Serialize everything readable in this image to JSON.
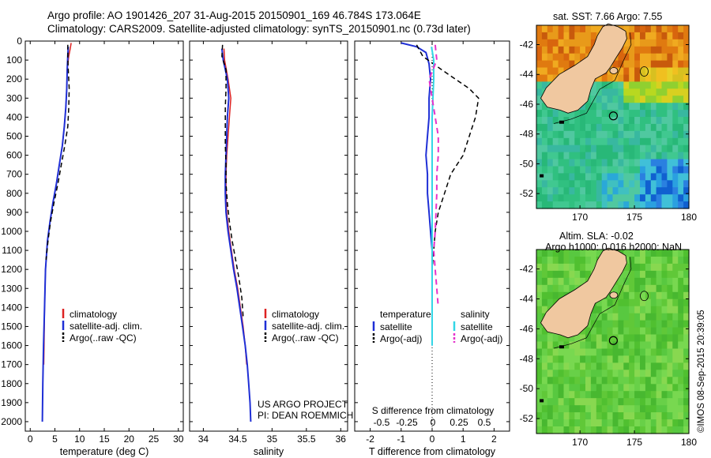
{
  "header": {
    "line1": "Argo profile: AO 1901426_207 31-Aug-2015 20150901_169 46.784S 173.064E",
    "line2": "Climatology: CARS2009. Satellite-adjusted climatology: synTS_20150901.nc (0.73d later)"
  },
  "colors": {
    "climatology": "#dd2222",
    "satellite": "#1f2fd6",
    "argo": "#000000",
    "sat_salinity": "#33d6e6",
    "argo_salinity": "#e633cc"
  },
  "chart_data": [
    {
      "type": "line",
      "panel": "temperature",
      "xlabel": "temperature (deg C)",
      "xlim": [
        -1,
        31
      ],
      "xticks": [
        0,
        5,
        10,
        15,
        20,
        25,
        30
      ],
      "ylim": [
        0,
        2050
      ],
      "yticks": [
        0,
        100,
        200,
        300,
        400,
        500,
        600,
        700,
        800,
        900,
        1000,
        1100,
        1200,
        1300,
        1400,
        1500,
        1600,
        1700,
        1800,
        1900,
        2000
      ],
      "legend": [
        "climatology",
        "satellite-adj. clim.",
        "Argo(..raw -QC)"
      ],
      "series": [
        {
          "name": "climatology",
          "color": "#dd2222",
          "dash": "",
          "width": 1.5,
          "points": [
            [
              8.3,
              10
            ],
            [
              8.1,
              40
            ],
            [
              7.8,
              80
            ],
            [
              7.5,
              150
            ],
            [
              7.4,
              250
            ],
            [
              7.2,
              350
            ],
            [
              6.9,
              450
            ],
            [
              6.5,
              550
            ],
            [
              5.9,
              650
            ],
            [
              5.3,
              750
            ],
            [
              4.6,
              850
            ],
            [
              4.0,
              950
            ],
            [
              3.5,
              1050
            ],
            [
              3.1,
              1200
            ],
            [
              2.9,
              1400
            ],
            [
              2.8,
              1600
            ],
            [
              2.75,
              1700
            ]
          ]
        },
        {
          "name": "satellite-adj. clim.",
          "color": "#1f2fd6",
          "dash": "",
          "width": 2,
          "points": [
            [
              7.7,
              30
            ],
            [
              7.6,
              80
            ],
            [
              7.5,
              150
            ],
            [
              7.4,
              250
            ],
            [
              7.2,
              350
            ],
            [
              6.9,
              450
            ],
            [
              6.5,
              550
            ],
            [
              5.9,
              650
            ],
            [
              5.3,
              750
            ],
            [
              4.6,
              850
            ],
            [
              4.0,
              950
            ],
            [
              3.5,
              1050
            ],
            [
              3.1,
              1200
            ],
            [
              2.9,
              1400
            ],
            [
              2.7,
              1600
            ],
            [
              2.55,
              1800
            ],
            [
              2.45,
              2000
            ]
          ]
        },
        {
          "name": "Argo(..raw -QC)",
          "color": "#000000",
          "dash": "6,4",
          "width": 1.5,
          "points": [
            [
              7.6,
              20
            ],
            [
              7.6,
              80
            ],
            [
              7.7,
              150
            ],
            [
              7.9,
              250
            ],
            [
              7.8,
              350
            ],
            [
              7.6,
              450
            ],
            [
              7.0,
              550
            ],
            [
              6.3,
              650
            ],
            [
              5.6,
              750
            ],
            [
              4.8,
              850
            ],
            [
              4.1,
              950
            ],
            [
              3.6,
              1050
            ],
            [
              3.2,
              1150
            ]
          ]
        }
      ]
    },
    {
      "type": "line",
      "panel": "salinity",
      "xlabel": "salinity",
      "xlim": [
        33.8,
        36.1
      ],
      "xticks": [
        34,
        34.5,
        35,
        35.5,
        36
      ],
      "ylim": [
        0,
        2050
      ],
      "legend": [
        "climatology",
        "satellite-adj. clim.",
        "Argo(..raw -QC)"
      ],
      "annotation": [
        "US ARGO PROJECT",
        "PI: DEAN ROEMMICH"
      ],
      "series": [
        {
          "name": "climatology",
          "color": "#dd2222",
          "dash": "",
          "width": 1.5,
          "points": [
            [
              34.3,
              40
            ],
            [
              34.31,
              100
            ],
            [
              34.36,
              200
            ],
            [
              34.4,
              300
            ],
            [
              34.38,
              400
            ],
            [
              34.36,
              500
            ],
            [
              34.34,
              600
            ],
            [
              34.33,
              700
            ],
            [
              34.33,
              800
            ],
            [
              34.34,
              900
            ],
            [
              34.37,
              1000
            ],
            [
              34.41,
              1100
            ],
            [
              34.45,
              1200
            ],
            [
              34.5,
              1300
            ],
            [
              34.54,
              1400
            ],
            [
              34.58,
              1500
            ],
            [
              34.61,
              1600
            ],
            [
              34.63,
              1700
            ]
          ]
        },
        {
          "name": "satellite-adj. clim.",
          "color": "#1f2fd6",
          "dash": "",
          "width": 2,
          "points": [
            [
              34.27,
              40
            ],
            [
              34.29,
              100
            ],
            [
              34.35,
              200
            ],
            [
              34.37,
              300
            ],
            [
              34.35,
              400
            ],
            [
              34.34,
              500
            ],
            [
              34.33,
              600
            ],
            [
              34.32,
              700
            ],
            [
              34.32,
              800
            ],
            [
              34.33,
              900
            ],
            [
              34.36,
              1000
            ],
            [
              34.4,
              1100
            ],
            [
              34.44,
              1200
            ],
            [
              34.49,
              1300
            ],
            [
              34.53,
              1400
            ],
            [
              34.57,
              1500
            ],
            [
              34.61,
              1600
            ],
            [
              34.64,
              1700
            ],
            [
              34.66,
              1800
            ],
            [
              34.68,
              1900
            ],
            [
              34.69,
              2000
            ]
          ]
        },
        {
          "name": "Argo(..raw -QC)",
          "color": "#000000",
          "dash": "6,4",
          "width": 1.5,
          "points": [
            [
              34.28,
              20
            ],
            [
              34.27,
              80
            ],
            [
              34.33,
              150
            ],
            [
              34.33,
              250
            ],
            [
              34.32,
              350
            ],
            [
              34.32,
              450
            ],
            [
              34.32,
              550
            ],
            [
              34.33,
              650
            ],
            [
              34.33,
              750
            ],
            [
              34.35,
              850
            ],
            [
              34.38,
              950
            ],
            [
              34.42,
              1050
            ],
            [
              34.47,
              1150
            ],
            [
              34.52,
              1250
            ],
            [
              34.56,
              1350
            ],
            [
              34.58,
              1450
            ]
          ]
        }
      ]
    },
    {
      "type": "line",
      "panel": "difference",
      "xlabel": "T difference from climatology",
      "xlabel2": "S difference from climatology",
      "xlim": [
        -2.5,
        2.5
      ],
      "xticks": [
        -2,
        -1,
        0,
        1,
        2
      ],
      "xticks2": [
        "-0.5",
        "-0.25",
        "0",
        "0.25",
        "0.5"
      ],
      "ylim": [
        0,
        2050
      ],
      "legend_temperature": {
        "title": "temperature",
        "items": [
          "satellite",
          "Argo(-adj)"
        ]
      },
      "legend_salinity": {
        "title": "salinity",
        "items": [
          "satellite",
          "Argo(-adj)"
        ]
      },
      "series": [
        {
          "name": "temperature satellite",
          "color": "#1f2fd6",
          "dash": "",
          "width": 2,
          "points": [
            [
              -1.0,
              10
            ],
            [
              -0.5,
              30
            ],
            [
              -0.2,
              60
            ],
            [
              -0.1,
              120
            ],
            [
              -0.05,
              200
            ],
            [
              -0.1,
              300
            ],
            [
              -0.1,
              400
            ],
            [
              -0.15,
              500
            ],
            [
              -0.2,
              600
            ],
            [
              -0.15,
              700
            ],
            [
              -0.15,
              800
            ],
            [
              -0.1,
              900
            ],
            [
              -0.05,
              1000
            ],
            [
              0,
              1100
            ],
            [
              0,
              1300
            ],
            [
              0,
              1500
            ],
            [
              0,
              1600
            ]
          ]
        },
        {
          "name": "temperature Argo(-adj)",
          "color": "#000000",
          "dash": "6,4",
          "width": 1.5,
          "points": [
            [
              -0.5,
              20
            ],
            [
              -0.3,
              80
            ],
            [
              0.3,
              150
            ],
            [
              1.2,
              250
            ],
            [
              1.5,
              300
            ],
            [
              1.4,
              400
            ],
            [
              1.2,
              500
            ],
            [
              1.0,
              600
            ],
            [
              0.6,
              700
            ],
            [
              0.4,
              800
            ],
            [
              0.2,
              900
            ],
            [
              0.1,
              1000
            ],
            [
              0.05,
              1100
            ],
            [
              0,
              1200
            ],
            [
              0,
              1300
            ],
            [
              0,
              1350
            ]
          ]
        },
        {
          "name": "salinity satellite",
          "color": "#33d6e6",
          "dash": "",
          "width": 2,
          "points": [
            [
              -0.02,
              30
            ],
            [
              0.05,
              100
            ],
            [
              0.05,
              200
            ],
            [
              0.0,
              400
            ],
            [
              0.0,
              600
            ],
            [
              0.0,
              800
            ],
            [
              0.0,
              1000
            ],
            [
              0.0,
              1200
            ],
            [
              0.0,
              1400
            ],
            [
              0.0,
              1600
            ]
          ]
        },
        {
          "name": "salinity Argo(-adj)",
          "color": "#e633cc",
          "dash": "7,5",
          "width": 2,
          "points": [
            [
              0.1,
              20
            ],
            [
              0.15,
              100
            ],
            [
              -0.1,
              200
            ],
            [
              0.0,
              300
            ],
            [
              0.1,
              400
            ],
            [
              0.2,
              500
            ],
            [
              0.2,
              600
            ],
            [
              0.15,
              700
            ],
            [
              0.15,
              800
            ],
            [
              0.1,
              1000
            ],
            [
              0.05,
              1100
            ],
            [
              0.1,
              1200
            ],
            [
              0.15,
              1300
            ],
            [
              0.2,
              1400
            ]
          ]
        }
      ]
    },
    {
      "type": "heatmap",
      "panel": "sst-map",
      "title": "sat. SST: 7.66 Argo: 7.55",
      "xlim": [
        166,
        180
      ],
      "ylim": [
        -53,
        -40.7
      ],
      "xticks": [
        170,
        175,
        180
      ],
      "yticks": [
        -42,
        -44,
        -46,
        -48,
        -50,
        -52
      ],
      "argo_position": [
        173.064,
        -46.784
      ]
    },
    {
      "type": "heatmap",
      "panel": "sla-map",
      "title": "Altim. SLA: -0.02",
      "subtitle": "Argo h1000: 0.016 h2000: NaN",
      "xlim": [
        166,
        180
      ],
      "ylim": [
        -53,
        -40.7
      ],
      "xticks": [
        170,
        175,
        180
      ],
      "yticks": [
        -42,
        -44,
        -46,
        -48,
        -50,
        -52
      ],
      "argo_position": [
        173.064,
        -46.784
      ]
    }
  ],
  "side_label": "©IMOS 08-Sep-2015 20:39:05"
}
